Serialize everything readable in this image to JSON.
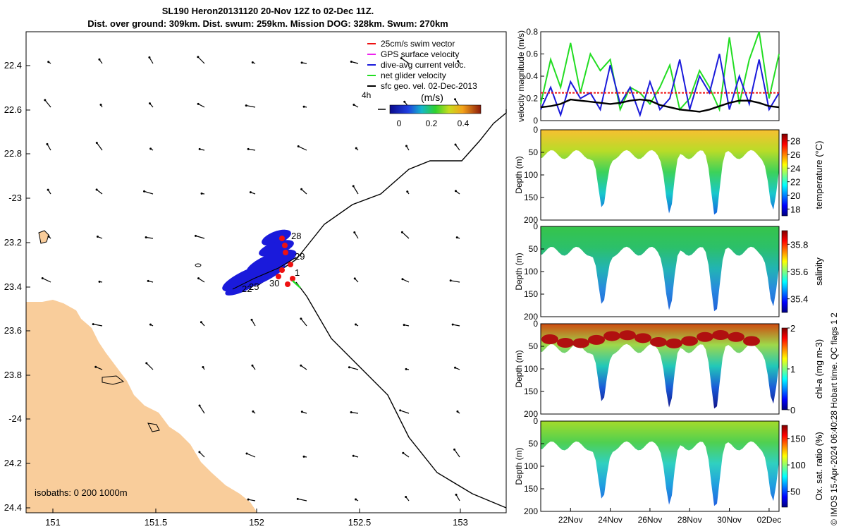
{
  "header": {
    "title_line1": "SL190 Heron20131120 20-Nov 12Z to 02-Dec 11Z.",
    "title_line2": "Dist. over ground: 309km. Dist. swum: 259km. Mission DOG: 328km. Swum: 270km"
  },
  "credit": "© IMOS 15-Apr-2024 06:40:28 Hobart time. QC flags 1  2",
  "colors": {
    "land": "#f9cd9b",
    "red": "#ee1111",
    "blue": "#1a1adb",
    "green": "#22dd22",
    "magenta": "#ee22ee",
    "black": "#000000"
  },
  "map": {
    "lon_ticks": [
      "151",
      "151.5",
      "152",
      "152.5",
      "153"
    ],
    "lat_ticks": [
      "22.4",
      "22.6",
      "22.8",
      "-23",
      "23.2",
      "23.4",
      "23.6",
      "23.8",
      "-24",
      "24.2",
      "24.4"
    ],
    "legend": [
      {
        "label": "25cm/s swim vector",
        "color": "#ee1111"
      },
      {
        "label": "GPS surface velocity",
        "color": "#ee22ee"
      },
      {
        "label": "dive-avg current veloc.",
        "color": "#1a1adb"
      },
      {
        "label": "net glider velocity",
        "color": "#22dd22"
      },
      {
        "label": "sfc geo. vel. 02-Dec-2013",
        "color": "#000000"
      }
    ],
    "colorbar": {
      "label": "(m/s)",
      "ticks": [
        "0",
        "0.2",
        "0.4"
      ],
      "time_step_label": "4h"
    },
    "isobaths_label": "isobaths: 0   200   1000m",
    "day_labels": [
      "28",
      "29",
      "30",
      "1",
      "22",
      "25"
    ]
  },
  "chart_data": [
    {
      "type": "line",
      "title": "",
      "ylabel": "velocity magnitude (m/s)",
      "ylim": [
        0,
        0.8
      ],
      "yticks": [
        "0",
        "0.2",
        "0.4",
        "0.6",
        "0.8"
      ],
      "x_days": [
        20.5,
        21,
        21.5,
        22,
        22.5,
        23,
        23.5,
        24,
        24.5,
        25,
        25.5,
        26,
        26.5,
        27,
        27.5,
        28,
        28.5,
        29,
        29.5,
        30,
        30.5,
        31,
        31.5,
        32,
        32.5
      ],
      "series": [
        {
          "name": "net glider velocity",
          "color": "#22dd22",
          "values": [
            0.15,
            0.55,
            0.3,
            0.7,
            0.25,
            0.6,
            0.45,
            0.55,
            0.1,
            0.3,
            0.25,
            0.15,
            0.3,
            0.5,
            0.1,
            0.2,
            0.45,
            0.3,
            0.1,
            0.75,
            0.15,
            0.55,
            0.8,
            0.2,
            0.6
          ]
        },
        {
          "name": "dive-avg current veloc.",
          "color": "#1a1adb",
          "values": [
            0.1,
            0.3,
            0.05,
            0.35,
            0.2,
            0.25,
            0.1,
            0.5,
            0.15,
            0.3,
            0.05,
            0.35,
            0.1,
            0.2,
            0.55,
            0.1,
            0.4,
            0.25,
            0.6,
            0.1,
            0.4,
            0.15,
            0.55,
            0.1,
            0.25
          ]
        },
        {
          "name": "sfc geo. vel.",
          "color": "#000000",
          "values": [
            0.12,
            0.13,
            0.15,
            0.19,
            0.18,
            0.17,
            0.16,
            0.15,
            0.16,
            0.18,
            0.19,
            0.18,
            0.14,
            0.12,
            0.1,
            0.09,
            0.08,
            0.1,
            0.13,
            0.16,
            0.18,
            0.18,
            0.16,
            0.13,
            0.12
          ]
        },
        {
          "name": "swim speed",
          "color": "#ee1111",
          "values": [
            0.25,
            0.25,
            0.25,
            0.25,
            0.25,
            0.25,
            0.25,
            0.25,
            0.25,
            0.25,
            0.25,
            0.25,
            0.25,
            0.25,
            0.25,
            0.25,
            0.25,
            0.25,
            0.25,
            0.25,
            0.25,
            0.25,
            0.25,
            0.25,
            0.25
          ]
        }
      ]
    },
    {
      "type": "heatmap",
      "ylabel": "Depth (m)",
      "colorbar_label": "temperature (°C)",
      "colorbar_ticks": [
        "18",
        "20",
        "22",
        "24",
        "26",
        "28"
      ],
      "clim": [
        17,
        29
      ],
      "yticks": [
        "0",
        "50",
        "100",
        "150",
        "200"
      ],
      "surface_value": 27
    },
    {
      "type": "heatmap",
      "ylabel": "Depth (m)",
      "colorbar_label": "salinity",
      "colorbar_ticks": [
        "35.4",
        "35.6",
        "35.8"
      ],
      "clim": [
        35.3,
        35.9
      ],
      "yticks": [
        "0",
        "50",
        "100",
        "150",
        "200"
      ],
      "surface_value": 35.65
    },
    {
      "type": "heatmap",
      "ylabel": "Depth (m)",
      "colorbar_label": "chl-a (mg m-3)",
      "colorbar_ticks": [
        "0",
        "1",
        "2"
      ],
      "clim": [
        0,
        2
      ],
      "yticks": [
        "0",
        "50",
        "100",
        "150",
        "200"
      ],
      "surface_value": 0.8
    },
    {
      "type": "heatmap",
      "ylabel": "Depth (m)",
      "colorbar_label": "Ox. sat. ratio (%)",
      "colorbar_ticks": [
        "50",
        "100",
        "150"
      ],
      "clim": [
        20,
        175
      ],
      "yticks": [
        "0",
        "50",
        "100",
        "150",
        "200"
      ],
      "surface_value": 125,
      "xticks": [
        "22Nov",
        "24Nov",
        "26Nov",
        "28Nov",
        "30Nov",
        "02Dec"
      ]
    }
  ]
}
